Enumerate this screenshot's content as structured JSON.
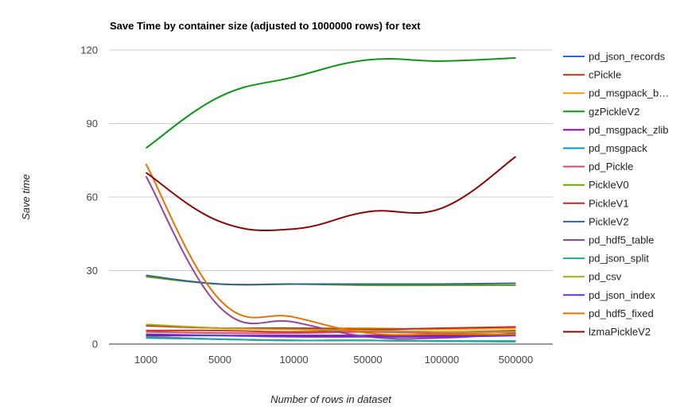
{
  "chart_data": {
    "type": "line",
    "title": "Save Time by container size (adjusted to 1000000 rows) for text",
    "xlabel": "Number of rows in dataset",
    "ylabel": "Save time",
    "categories": [
      "1000",
      "5000",
      "10000",
      "50000",
      "100000",
      "500000"
    ],
    "ylim": [
      0,
      120
    ],
    "yticks": [
      0,
      30,
      60,
      90,
      120
    ],
    "grid": true,
    "legend_position": "right",
    "series": [
      {
        "name": "pd_json_records",
        "color": "#3366cc",
        "values": [
          3.0,
          2.0,
          1.5,
          1.5,
          1.2,
          1.2
        ]
      },
      {
        "name": "cPickle",
        "color": "#dc3912",
        "values": [
          5.5,
          5.5,
          5.0,
          5.5,
          5.0,
          5.5
        ]
      },
      {
        "name": "pd_msgpack_b…",
        "color": "#ff9900",
        "values": [
          8.0,
          6.5,
          6.5,
          6.5,
          6.0,
          6.5
        ]
      },
      {
        "name": "gzPickleV2",
        "color": "#109618",
        "values": [
          80.0,
          101.0,
          109.0,
          116.0,
          115.5,
          116.8
        ]
      },
      {
        "name": "pd_msgpack_zlib",
        "color": "#990099",
        "values": [
          3.5,
          3.5,
          3.5,
          3.5,
          3.5,
          4.0
        ]
      },
      {
        "name": "pd_msgpack",
        "color": "#0099c6",
        "values": [
          2.5,
          2.0,
          1.5,
          1.5,
          1.2,
          1.0
        ]
      },
      {
        "name": "pd_Pickle",
        "color": "#dd4477",
        "values": [
          5.0,
          4.5,
          4.5,
          5.0,
          4.5,
          5.0
        ]
      },
      {
        "name": "PickleV0",
        "color": "#66aa00",
        "values": [
          27.5,
          24.5,
          24.5,
          24.0,
          24.0,
          24.0
        ]
      },
      {
        "name": "PickleV1",
        "color": "#b82e2e",
        "values": [
          7.5,
          6.5,
          6.5,
          6.0,
          6.5,
          7.0
        ]
      },
      {
        "name": "PickleV2",
        "color": "#316395",
        "values": [
          28.0,
          24.5,
          24.5,
          24.5,
          24.5,
          24.8
        ]
      },
      {
        "name": "pd_hdf5_table",
        "color": "#994499",
        "values": [
          68.5,
          15.0,
          9.0,
          3.0,
          2.5,
          4.5
        ]
      },
      {
        "name": "pd_json_split",
        "color": "#22aa99",
        "values": [
          3.0,
          2.0,
          1.5,
          1.5,
          1.2,
          1.2
        ]
      },
      {
        "name": "pd_csv",
        "color": "#aaaa11",
        "values": [
          8.0,
          6.5,
          6.0,
          5.5,
          5.0,
          5.0
        ]
      },
      {
        "name": "pd_json_index",
        "color": "#6633cc",
        "values": [
          4.0,
          3.5,
          3.0,
          3.0,
          3.0,
          3.5
        ]
      },
      {
        "name": "pd_hdf5_fixed",
        "color": "#e67300",
        "values": [
          73.5,
          18.0,
          11.0,
          4.5,
          4.0,
          4.0
        ]
      },
      {
        "name": "lzmaPickleV2",
        "color": "#8b0707",
        "values": [
          70.0,
          50.0,
          47.0,
          54.0,
          55.5,
          76.5
        ]
      }
    ]
  }
}
